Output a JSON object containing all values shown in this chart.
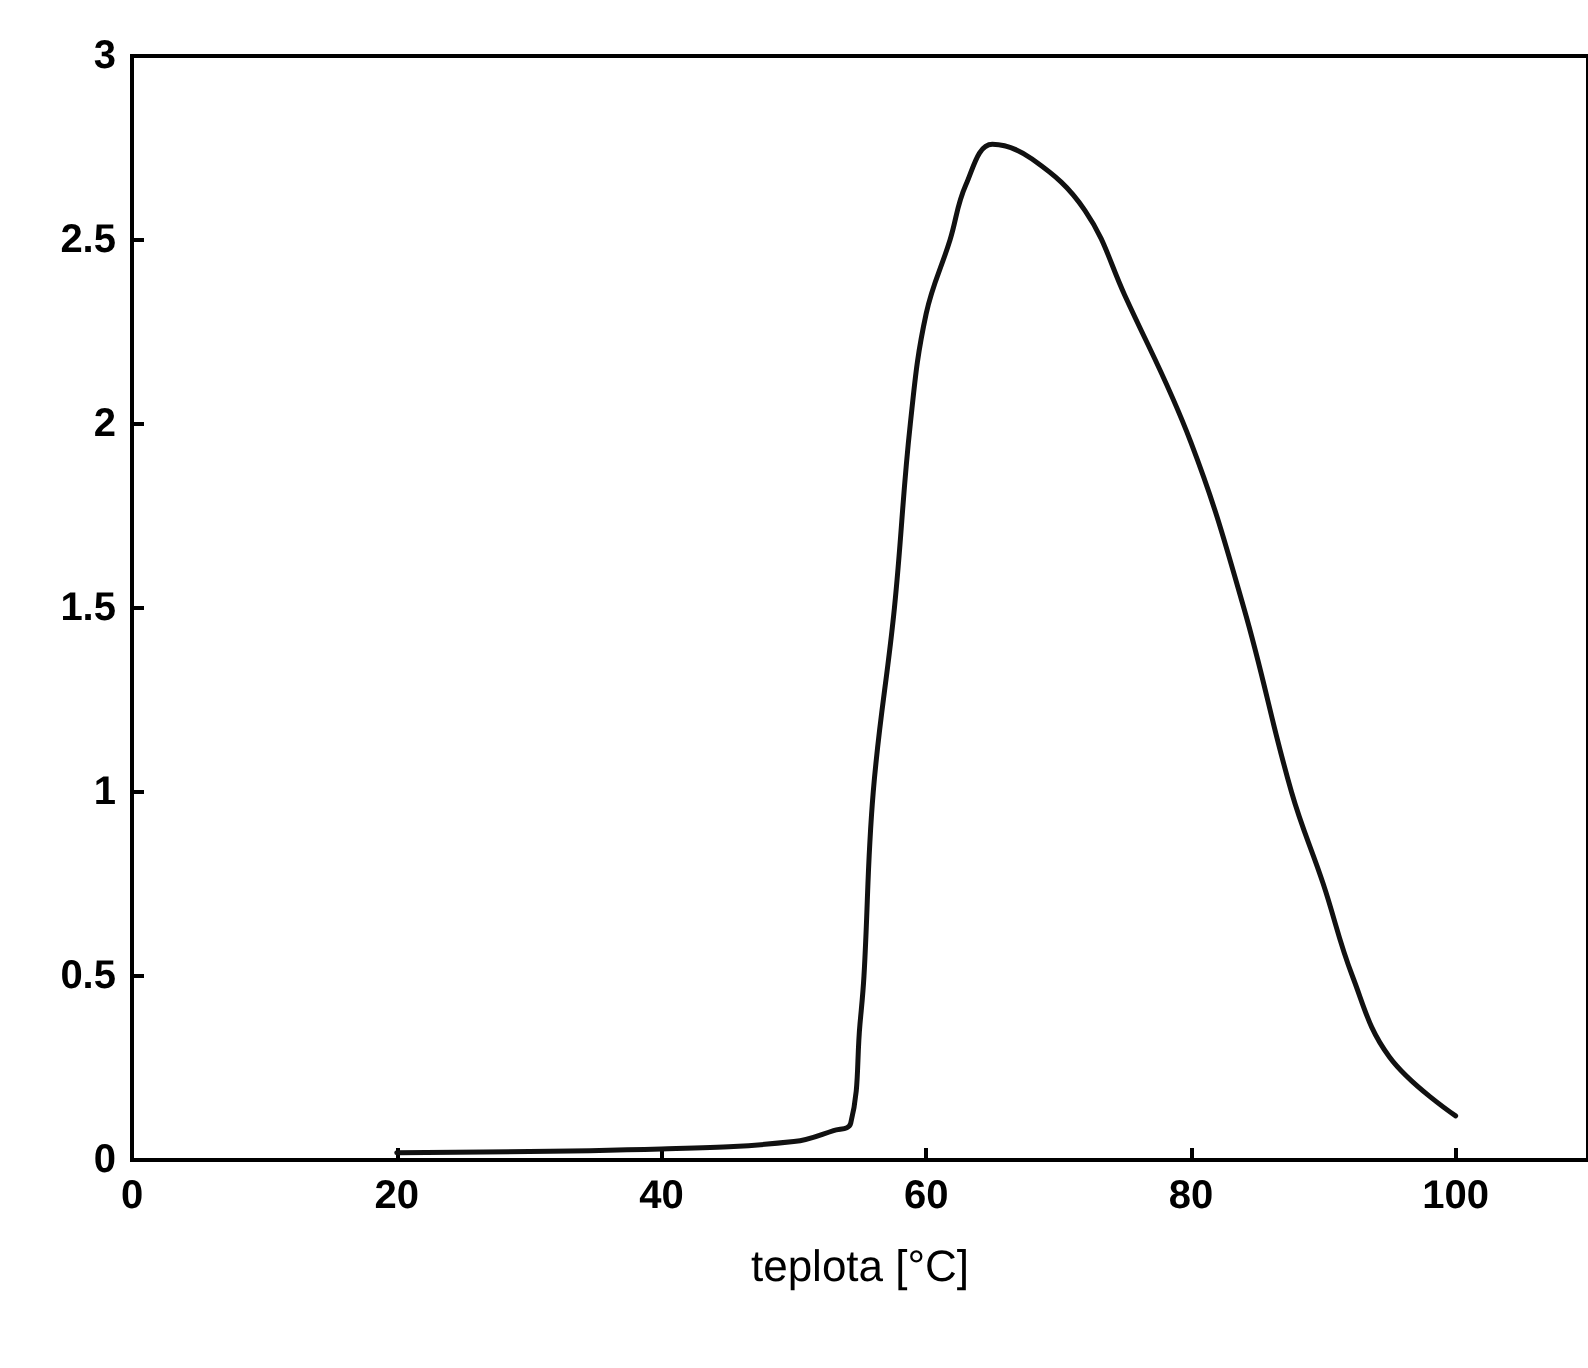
{
  "chart_data": {
    "type": "line",
    "xlabel": "teplota [°C]",
    "x": [
      20,
      40,
      50,
      53,
      54.3,
      55,
      55.3,
      56,
      57.6,
      58.8,
      60,
      61.8,
      63,
      65,
      68,
      72,
      75,
      80,
      84,
      87.6,
      90,
      92.2,
      95,
      100
    ],
    "values": [
      0.02,
      0.03,
      0.05,
      0.08,
      0.1,
      0.37,
      0.5,
      1.0,
      1.5,
      2.0,
      2.3,
      2.5,
      2.65,
      2.76,
      2.72,
      2.58,
      2.35,
      1.95,
      1.5,
      1.0,
      0.75,
      0.5,
      0.28,
      0.12
    ],
    "color": "#111111",
    "marker": "none",
    "line_style": "solid",
    "grid": false,
    "xlim": [
      0,
      110
    ],
    "xticks": [
      0,
      20,
      40,
      60,
      80,
      100
    ],
    "ylim": [
      0,
      3
    ],
    "yticks": [
      0,
      0.5,
      1,
      1.5,
      2,
      2.5,
      3
    ]
  }
}
